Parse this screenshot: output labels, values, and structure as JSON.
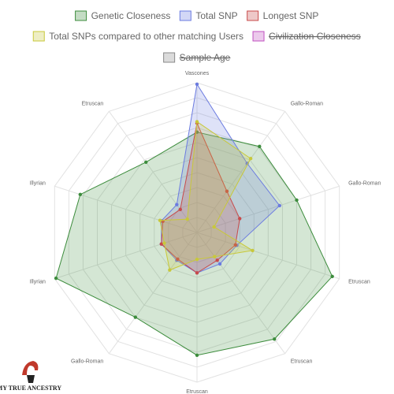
{
  "chart_data": {
    "type": "radar",
    "categories": [
      "Vascones",
      "Gallo-Roman",
      "Gallo-Roman",
      "Etruscan",
      "Etruscan",
      "Etruscan",
      "Gallo-Roman",
      "Illyrian",
      "Illyrian",
      "Etruscan"
    ],
    "ylim": [
      0,
      100
    ],
    "yticks": [
      10,
      20,
      30,
      40,
      50,
      60,
      70,
      80,
      90,
      100
    ],
    "grid": true,
    "series": [
      {
        "name": "Genetic Closeness",
        "color": "#3c8c3c",
        "values": [
          67,
          71,
          70,
          95,
          88,
          82,
          70,
          99,
          82,
          58
        ]
      },
      {
        "name": "Total SNP",
        "color": "#6b7be0",
        "values": [
          99,
          57,
          58,
          28,
          26,
          27,
          23,
          25,
          25,
          23
        ]
      },
      {
        "name": "Longest SNP",
        "color": "#c84a4a",
        "values": [
          73,
          34,
          30,
          27,
          23,
          27,
          22,
          25,
          24,
          19
        ]
      },
      {
        "name": "Total SNPs compared to other matching Users",
        "color": "#c8c83a",
        "values": [
          74,
          61,
          12,
          39,
          20,
          18,
          31,
          23,
          26,
          11
        ]
      },
      {
        "name": "Civilization Closeness",
        "color": "#c050c0",
        "hidden": true
      },
      {
        "name": "Sample Age",
        "color": "#888888",
        "hidden": true
      }
    ],
    "logo": "MY TRUE ANCESTRY"
  }
}
